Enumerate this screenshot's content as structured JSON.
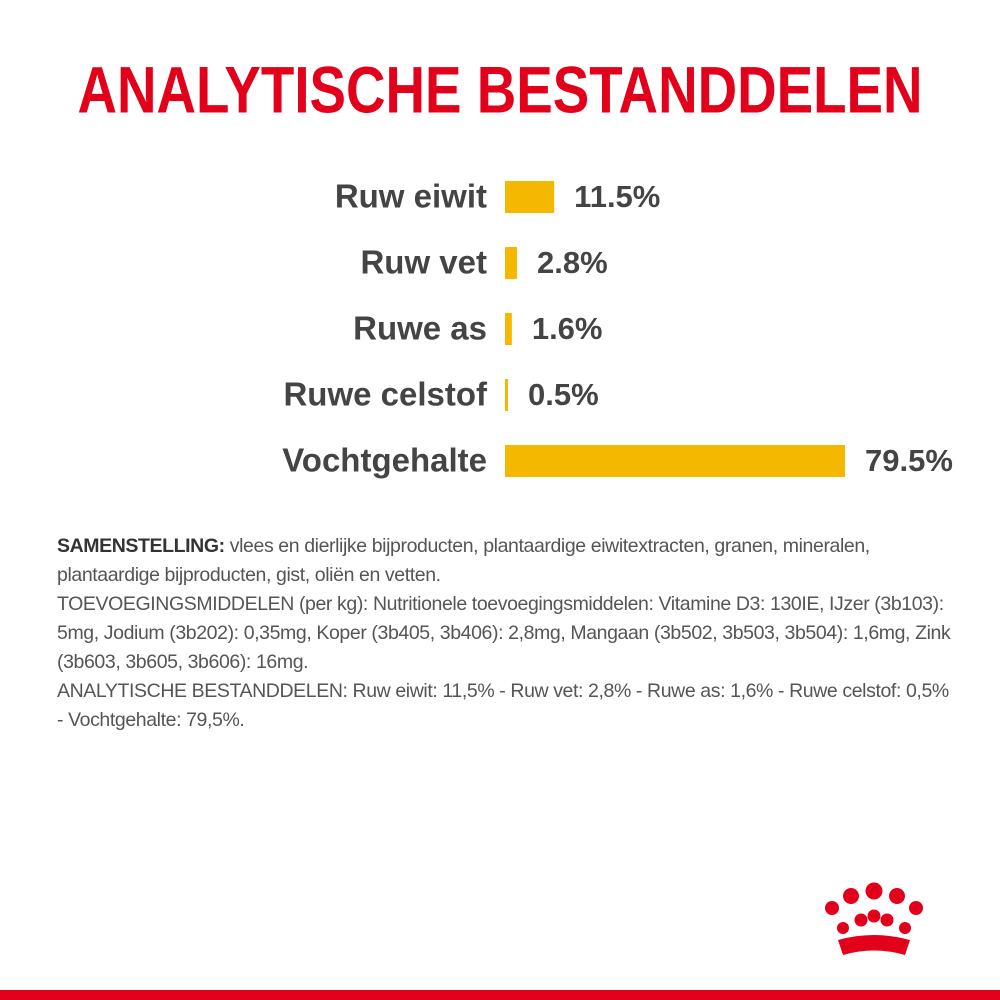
{
  "chart_data": {
    "type": "bar",
    "orientation": "horizontal",
    "title": "ANALYTISCHE BESTANDDELEN",
    "categories": [
      "Ruw eiwit",
      "Ruw vet",
      "Ruwe as",
      "Ruwe celstof",
      "Vochtgehalte"
    ],
    "values": [
      11.5,
      2.8,
      1.6,
      0.5,
      79.5
    ],
    "value_labels": [
      "11.5%",
      "2.8%",
      "1.6%",
      "0.5%",
      "79.5%"
    ],
    "color": "#f5b800"
  },
  "composition": {
    "label": "SAMENSTELLING:",
    "text": "vlees en dierlijke bijproducten, plantaardige eiwitextracten, granen, mineralen, plantaardige bijproducten, gist, oliën en vetten.",
    "additives": "TOEVOEGINGSMIDDELEN (per kg): Nutritionele toevoegingsmiddelen: Vitamine D3: 130IE, IJzer (3b103): 5mg, Jodium (3b202): 0,35mg, Koper (3b405, 3b406): 2,8mg, Mangaan (3b502, 3b503, 3b504): 1,6mg, Zink (3b603, 3b605, 3b606): 16mg.",
    "analysis": "ANALYTISCHE BESTANDDELEN: Ruw eiwit: 11,5% - Ruw vet: 2,8% - Ruwe as: 1,6% - Ruwe celstof: 0,5% - Vochtgehalte: 79,5%."
  }
}
